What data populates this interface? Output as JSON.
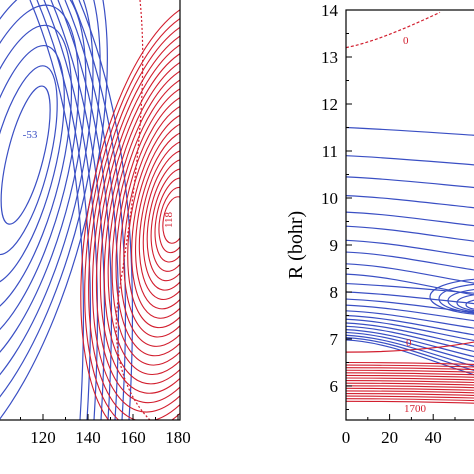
{
  "chart_data": [
    {
      "type": "contour",
      "title": "",
      "xlabel": "",
      "ylabel": "",
      "xlim": [
        100,
        180
      ],
      "x_ticks": [
        "120",
        "140",
        "160",
        "180"
      ],
      "contour_labels": [
        "-53",
        "118"
      ],
      "colors": {
        "negative": "#3a4fc4",
        "positive": "#d21e2e"
      }
    },
    {
      "type": "contour",
      "title": "",
      "xlabel": "",
      "ylabel": "R (bohr)",
      "xlim": [
        0,
        60
      ],
      "ylim": [
        5.3,
        14
      ],
      "x_ticks": [
        "0",
        "20",
        "40"
      ],
      "y_ticks": [
        "6",
        "7",
        "8",
        "9",
        "10",
        "11",
        "12",
        "13",
        "14"
      ],
      "contour_labels": [
        "0",
        "0",
        "1700"
      ],
      "colors": {
        "negative": "#3a4fc4",
        "positive": "#d21e2e"
      }
    }
  ]
}
